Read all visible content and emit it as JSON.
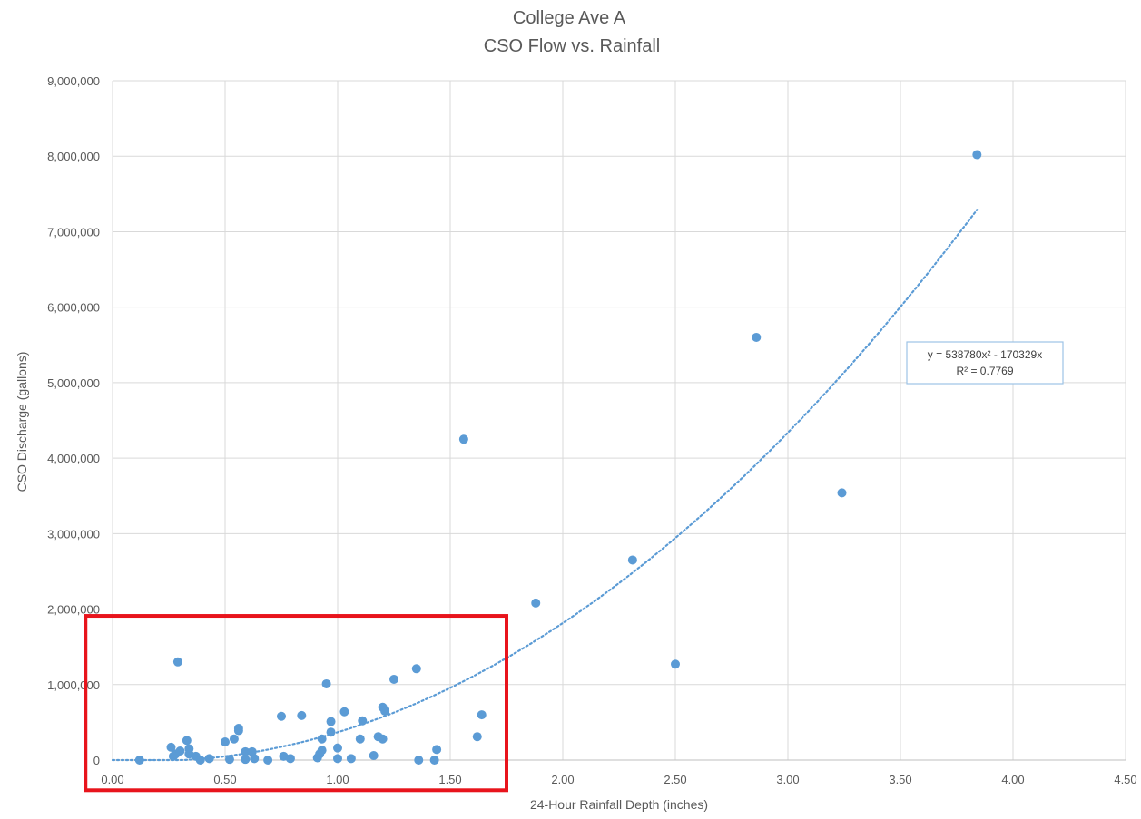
{
  "chart_data": {
    "type": "scatter",
    "title": "College Ave A",
    "subtitle": "CSO Flow vs. Rainfall",
    "xlabel": "24-Hour Rainfall Depth (inches)",
    "ylabel": "CSO Discharge (gallons)",
    "xlim": [
      0,
      4.5
    ],
    "ylim": [
      0,
      9000000
    ],
    "x_ticks": [
      "0.00",
      "0.50",
      "1.00",
      "1.50",
      "2.00",
      "2.50",
      "3.00",
      "3.50",
      "4.00",
      "4.50"
    ],
    "y_ticks": [
      "0",
      "1,000,000",
      "2,000,000",
      "3,000,000",
      "4,000,000",
      "5,000,000",
      "6,000,000",
      "7,000,000",
      "8,000,000",
      "9,000,000"
    ],
    "grid": true,
    "legend": "none",
    "series": [
      {
        "color": "#5b9bd5",
        "points": [
          [
            0.12,
            0
          ],
          [
            0.26,
            170000
          ],
          [
            0.27,
            50000
          ],
          [
            0.28,
            80000
          ],
          [
            0.29,
            1300000
          ],
          [
            0.3,
            120000
          ],
          [
            0.33,
            260000
          ],
          [
            0.34,
            150000
          ],
          [
            0.34,
            80000
          ],
          [
            0.37,
            50000
          ],
          [
            0.39,
            0
          ],
          [
            0.43,
            20000
          ],
          [
            0.5,
            240000
          ],
          [
            0.52,
            10000
          ],
          [
            0.54,
            280000
          ],
          [
            0.56,
            420000
          ],
          [
            0.56,
            390000
          ],
          [
            0.59,
            10000
          ],
          [
            0.59,
            110000
          ],
          [
            0.62,
            110000
          ],
          [
            0.63,
            20000
          ],
          [
            0.69,
            0
          ],
          [
            0.75,
            580000
          ],
          [
            0.76,
            50000
          ],
          [
            0.79,
            20000
          ],
          [
            0.84,
            590000
          ],
          [
            0.91,
            30000
          ],
          [
            0.92,
            80000
          ],
          [
            0.93,
            130000
          ],
          [
            0.93,
            280000
          ],
          [
            0.95,
            1010000
          ],
          [
            0.97,
            510000
          ],
          [
            0.97,
            370000
          ],
          [
            1.0,
            20000
          ],
          [
            1.0,
            160000
          ],
          [
            1.03,
            640000
          ],
          [
            1.06,
            20000
          ],
          [
            1.1,
            280000
          ],
          [
            1.11,
            520000
          ],
          [
            1.16,
            60000
          ],
          [
            1.18,
            310000
          ],
          [
            1.2,
            280000
          ],
          [
            1.2,
            700000
          ],
          [
            1.21,
            650000
          ],
          [
            1.25,
            1070000
          ],
          [
            1.35,
            1210000
          ],
          [
            1.36,
            0
          ],
          [
            1.43,
            0
          ],
          [
            1.44,
            140000
          ],
          [
            1.56,
            4250000
          ],
          [
            1.62,
            310000
          ],
          [
            1.64,
            600000
          ],
          [
            1.88,
            2080000
          ],
          [
            2.31,
            2650000
          ],
          [
            2.5,
            1270000
          ],
          [
            2.86,
            5600000
          ],
          [
            3.24,
            3540000
          ],
          [
            3.84,
            8020000
          ]
        ]
      }
    ],
    "trendline": {
      "type": "polynomial",
      "a": 538780,
      "b": -170329,
      "x_range": [
        0.0,
        3.84
      ],
      "color": "#5b9bd5",
      "equation": "y = 538780x² - 170329x",
      "r2": "R² = 0.7769"
    },
    "highlight_box": {
      "color": "#e8141c",
      "x_range": [
        -0.12,
        1.75
      ],
      "y_range": [
        -400000,
        1910000
      ]
    }
  }
}
